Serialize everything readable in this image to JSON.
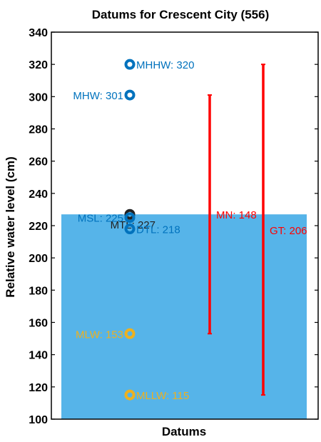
{
  "chart_data": {
    "type": "scatter",
    "title": "Datums for Crescent City (556)",
    "xlabel": "Datums",
    "ylabel": "Relative water level (cm)",
    "ylim": [
      100,
      340
    ],
    "yticks": [
      100,
      120,
      140,
      160,
      180,
      200,
      220,
      240,
      260,
      280,
      300,
      320,
      340
    ],
    "xticks": [],
    "grid": false,
    "colors": {
      "blue": "#0072BD",
      "orange": "#EDB120",
      "red": "#FF0000",
      "black": "#222222",
      "fill": "#56B4E9"
    },
    "fill": {
      "from": 100,
      "to": 227
    },
    "points": [
      {
        "value": 320,
        "color_key": "blue",
        "label": "MHHW: 320",
        "side": "right"
      },
      {
        "value": 301,
        "color_key": "blue",
        "label": "MHW: 301",
        "side": "left"
      },
      {
        "value": 227,
        "color_key": "black",
        "label": "MTL: 227",
        "side": "below-left"
      },
      {
        "value": 225,
        "color_key": "blue",
        "label": "MSL: 225",
        "side": "left"
      },
      {
        "value": 218,
        "color_key": "blue",
        "label": "DTL: 218",
        "side": "right"
      },
      {
        "value": 153,
        "color_key": "orange",
        "label": "MLW: 153",
        "side": "left"
      },
      {
        "value": 115,
        "color_key": "orange",
        "label": "MLLW: 115",
        "side": "right"
      }
    ],
    "ranges": [
      {
        "from": 153,
        "to": 301,
        "label": "MN: 148",
        "color_key": "red",
        "slot": 1
      },
      {
        "from": 115,
        "to": 320,
        "label": "GT: 206",
        "color_key": "red",
        "slot": 2
      }
    ]
  }
}
